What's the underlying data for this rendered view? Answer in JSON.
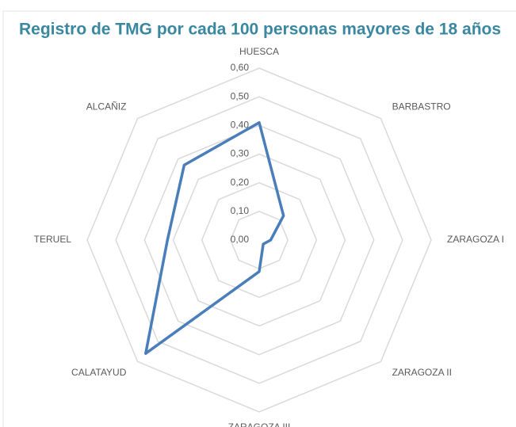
{
  "chart_data": {
    "type": "radar",
    "title": "Registro de TMG por cada 100 personas mayores de 18 años",
    "categories": [
      "HUESCA",
      "BARBASTRO",
      "ZARAGOZA I",
      "ZARAGOZA II",
      "ZARAGOZA III",
      "CALATAYUD",
      "TERUEL",
      "ALCAÑIZ"
    ],
    "values": [
      0.41,
      0.12,
      0.04,
      0.02,
      0.11,
      0.56,
      0.32,
      0.37
    ],
    "color": "#4a7ebb",
    "ylim": [
      0,
      0.6
    ],
    "yticks": [
      {
        "value": 0,
        "label": "0,00"
      },
      {
        "value": 0.1,
        "label": "0,10"
      },
      {
        "value": 0.2,
        "label": "0,20"
      },
      {
        "value": 0.3,
        "label": "0,30"
      },
      {
        "value": 0.4,
        "label": "0,40"
      },
      {
        "value": 0.5,
        "label": "0,50"
      },
      {
        "value": 0.6,
        "label": "0,60"
      }
    ],
    "grid": true
  }
}
